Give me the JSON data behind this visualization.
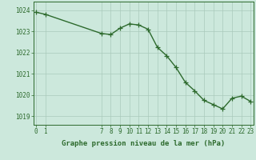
{
  "x": [
    0,
    1,
    7,
    8,
    9,
    10,
    11,
    12,
    13,
    14,
    15,
    16,
    17,
    18,
    19,
    20,
    21,
    22,
    23
  ],
  "y": [
    1023.9,
    1023.8,
    1022.9,
    1022.85,
    1023.15,
    1023.35,
    1023.3,
    1023.1,
    1022.25,
    1021.85,
    1021.3,
    1020.6,
    1020.2,
    1019.75,
    1019.55,
    1019.35,
    1019.85,
    1019.95,
    1019.7
  ],
  "line_color": "#2d6a2d",
  "marker_color": "#2d6a2d",
  "bg_color": "#cce8dc",
  "grid_color": "#aacabc",
  "ylabel_ticks": [
    1019,
    1020,
    1021,
    1022,
    1023,
    1024
  ],
  "xlabel_ticks": [
    0,
    1,
    7,
    8,
    9,
    10,
    11,
    12,
    13,
    14,
    15,
    16,
    17,
    18,
    19,
    20,
    21,
    22,
    23
  ],
  "xlim": [
    -0.3,
    23.3
  ],
  "ylim": [
    1018.6,
    1024.4
  ],
  "xlabel": "Graphe pression niveau de la mer (hPa)",
  "xlabel_fontsize": 6.5,
  "tick_fontsize": 5.5,
  "marker_size": 4,
  "line_width": 1.0
}
